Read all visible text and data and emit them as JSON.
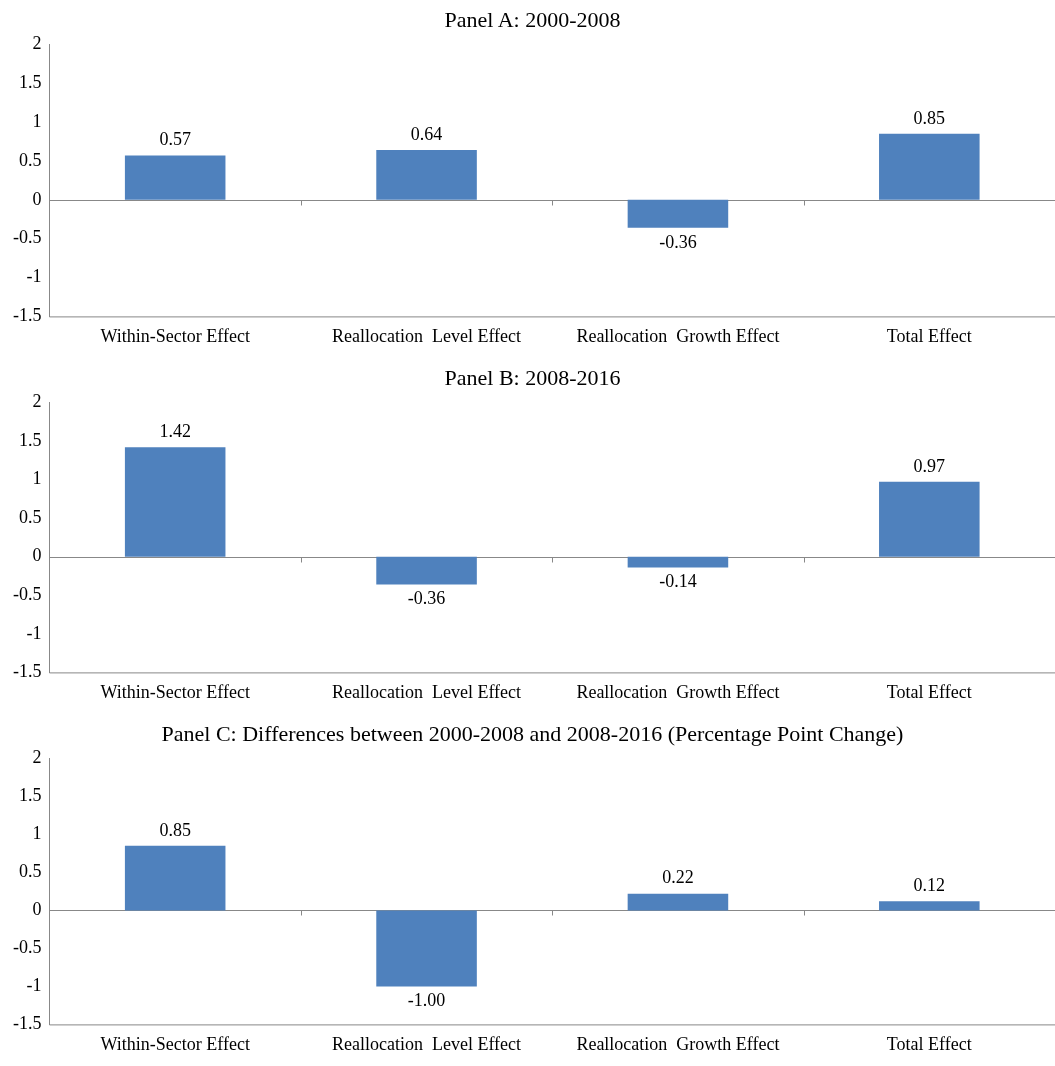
{
  "chart_data": [
    {
      "type": "bar",
      "title": "Panel A: 2000-2008",
      "categories": [
        "Within-Sector Effect",
        "Reallocation  Level Effect",
        "Reallocation  Growth Effect",
        "Total Effect"
      ],
      "values": [
        0.57,
        0.64,
        -0.36,
        0.85
      ],
      "value_labels": [
        "0.57",
        "0.64",
        "-0.36",
        "0.85"
      ],
      "color": "#4f81bd",
      "ylim": [
        -1.5,
        2
      ],
      "yticks": [
        -1.5,
        -1,
        -0.5,
        0,
        0.5,
        1,
        1.5,
        2
      ]
    },
    {
      "type": "bar",
      "title": "Panel B: 2008-2016",
      "categories": [
        "Within-Sector Effect",
        "Reallocation  Level Effect",
        "Reallocation  Growth Effect",
        "Total Effect"
      ],
      "values": [
        1.42,
        -0.36,
        -0.14,
        0.97
      ],
      "value_labels": [
        "1.42",
        "-0.36",
        "-0.14",
        "0.97"
      ],
      "color": "#4f81bd",
      "ylim": [
        -1.5,
        2
      ],
      "yticks": [
        -1.5,
        -1,
        -0.5,
        0,
        0.5,
        1,
        1.5,
        2
      ]
    },
    {
      "type": "bar",
      "title": "Panel C: Differences between 2000-2008 and 2008-2016 (Percentage Point Change)",
      "categories": [
        "Within-Sector Effect",
        "Reallocation  Level Effect",
        "Reallocation  Growth Effect",
        "Total Effect"
      ],
      "values": [
        0.85,
        -1.0,
        0.22,
        0.12
      ],
      "value_labels": [
        "0.85",
        "-1.00",
        "0.22",
        "0.12"
      ],
      "color": "#4f81bd",
      "ylim": [
        -1.5,
        2
      ],
      "yticks": [
        -1.5,
        -1,
        -0.5,
        0,
        0.5,
        1,
        1.5,
        2
      ]
    }
  ]
}
